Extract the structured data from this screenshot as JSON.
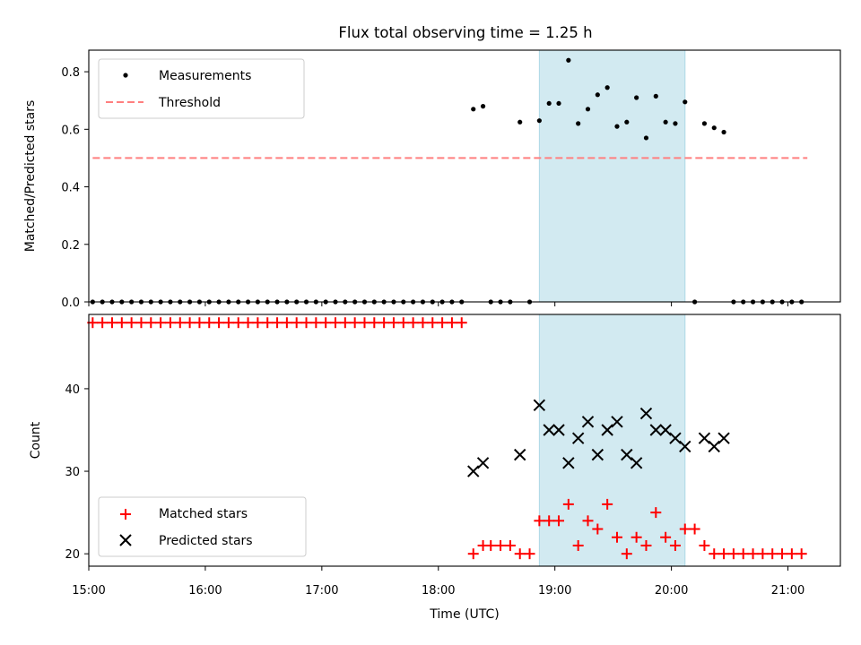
{
  "chart_data": [
    {
      "type": "scatter",
      "title": "Flux total observing time = 1.25 h",
      "ylabel": "Matched/Predicted stars",
      "xlabel": "",
      "xlim": [
        "15:00",
        "21:27"
      ],
      "ylim": [
        0,
        0.875
      ],
      "yticks": [
        0.0,
        0.2,
        0.4,
        0.6,
        0.8
      ],
      "yticklabels": [
        "0.0",
        "0.2",
        "0.4",
        "0.6",
        "0.8"
      ],
      "legend_position": "top-left",
      "shaded_span": {
        "from": "18:52",
        "to": "20:07",
        "color": "#add8e6"
      },
      "series": [
        {
          "name": "Measurements",
          "marker": "dot",
          "color": "#000000",
          "points": [
            [
              "15:02",
              0
            ],
            [
              "15:07",
              0
            ],
            [
              "15:12",
              0
            ],
            [
              "15:17",
              0
            ],
            [
              "15:22",
              0
            ],
            [
              "15:27",
              0
            ],
            [
              "15:32",
              0
            ],
            [
              "15:37",
              0
            ],
            [
              "15:42",
              0
            ],
            [
              "15:47",
              0
            ],
            [
              "15:52",
              0
            ],
            [
              "15:57",
              0
            ],
            [
              "16:02",
              0
            ],
            [
              "16:07",
              0
            ],
            [
              "16:12",
              0
            ],
            [
              "16:17",
              0
            ],
            [
              "16:22",
              0
            ],
            [
              "16:27",
              0
            ],
            [
              "16:32",
              0
            ],
            [
              "16:37",
              0
            ],
            [
              "16:42",
              0
            ],
            [
              "16:47",
              0
            ],
            [
              "16:52",
              0
            ],
            [
              "16:57",
              0
            ],
            [
              "17:02",
              0
            ],
            [
              "17:07",
              0
            ],
            [
              "17:12",
              0
            ],
            [
              "17:17",
              0
            ],
            [
              "17:22",
              0
            ],
            [
              "17:27",
              0
            ],
            [
              "17:32",
              0
            ],
            [
              "17:37",
              0
            ],
            [
              "17:42",
              0
            ],
            [
              "17:47",
              0
            ],
            [
              "17:52",
              0
            ],
            [
              "17:57",
              0
            ],
            [
              "18:02",
              0
            ],
            [
              "18:07",
              0
            ],
            [
              "18:12",
              0
            ],
            [
              "18:18",
              0.67
            ],
            [
              "18:23",
              0.68
            ],
            [
              "18:27",
              0
            ],
            [
              "18:32",
              0
            ],
            [
              "18:37",
              0
            ],
            [
              "18:42",
              0.625
            ],
            [
              "18:47",
              0
            ],
            [
              "18:52",
              0.63
            ],
            [
              "18:57",
              0.69
            ],
            [
              "19:02",
              0.69
            ],
            [
              "19:07",
              0.84
            ],
            [
              "19:12",
              0.62
            ],
            [
              "19:17",
              0.67
            ],
            [
              "19:22",
              0.72
            ],
            [
              "19:27",
              0.745
            ],
            [
              "19:32",
              0.61
            ],
            [
              "19:37",
              0.625
            ],
            [
              "19:42",
              0.71
            ],
            [
              "19:47",
              0.57
            ],
            [
              "19:52",
              0.715
            ],
            [
              "19:57",
              0.625
            ],
            [
              "20:02",
              0.62
            ],
            [
              "20:07",
              0.695
            ],
            [
              "20:12",
              0
            ],
            [
              "20:17",
              0.62
            ],
            [
              "20:22",
              0.605
            ],
            [
              "20:27",
              0.59
            ],
            [
              "20:32",
              0
            ],
            [
              "20:37",
              0
            ],
            [
              "20:42",
              0
            ],
            [
              "20:47",
              0
            ],
            [
              "20:52",
              0
            ],
            [
              "20:57",
              0
            ],
            [
              "21:02",
              0
            ],
            [
              "21:07",
              0
            ]
          ]
        },
        {
          "name": "Threshold",
          "style": "dashed",
          "color": "#ff7f7f",
          "points": [
            [
              "15:02",
              0.5
            ],
            [
              "21:10",
              0.5
            ]
          ]
        }
      ]
    },
    {
      "type": "scatter",
      "title": "",
      "xlabel": "Time (UTC)",
      "ylabel": "Count",
      "xlim": [
        "15:00",
        "21:27"
      ],
      "ylim": [
        18.5,
        49.0
      ],
      "xticklabels": [
        "15:00",
        "16:00",
        "17:00",
        "18:00",
        "19:00",
        "20:00",
        "21:00"
      ],
      "yticks": [
        20,
        30,
        40
      ],
      "yticklabels": [
        "20",
        "30",
        "40"
      ],
      "legend_position": "bottom-left",
      "shaded_span": {
        "from": "18:52",
        "to": "20:07",
        "color": "#add8e6"
      },
      "series": [
        {
          "name": "Matched stars",
          "marker": "plus",
          "color": "#ff0000",
          "points": [
            [
              "15:02",
              48
            ],
            [
              "15:07",
              48
            ],
            [
              "15:12",
              48
            ],
            [
              "15:17",
              48
            ],
            [
              "15:22",
              48
            ],
            [
              "15:27",
              48
            ],
            [
              "15:32",
              48
            ],
            [
              "15:37",
              48
            ],
            [
              "15:42",
              48
            ],
            [
              "15:47",
              48
            ],
            [
              "15:52",
              48
            ],
            [
              "15:57",
              48
            ],
            [
              "16:02",
              48
            ],
            [
              "16:07",
              48
            ],
            [
              "16:12",
              48
            ],
            [
              "16:17",
              48
            ],
            [
              "16:22",
              48
            ],
            [
              "16:27",
              48
            ],
            [
              "16:32",
              48
            ],
            [
              "16:37",
              48
            ],
            [
              "16:42",
              48
            ],
            [
              "16:47",
              48
            ],
            [
              "16:52",
              48
            ],
            [
              "16:57",
              48
            ],
            [
              "17:02",
              48
            ],
            [
              "17:07",
              48
            ],
            [
              "17:12",
              48
            ],
            [
              "17:17",
              48
            ],
            [
              "17:22",
              48
            ],
            [
              "17:27",
              48
            ],
            [
              "17:32",
              48
            ],
            [
              "17:37",
              48
            ],
            [
              "17:42",
              48
            ],
            [
              "17:47",
              48
            ],
            [
              "17:52",
              48
            ],
            [
              "17:57",
              48
            ],
            [
              "18:02",
              48
            ],
            [
              "18:07",
              48
            ],
            [
              "18:12",
              48
            ],
            [
              "18:18",
              20
            ],
            [
              "18:23",
              21
            ],
            [
              "18:27",
              21
            ],
            [
              "18:32",
              21
            ],
            [
              "18:37",
              21
            ],
            [
              "18:42",
              20
            ],
            [
              "18:47",
              20
            ],
            [
              "18:52",
              24
            ],
            [
              "18:57",
              24
            ],
            [
              "19:02",
              24
            ],
            [
              "19:07",
              26
            ],
            [
              "19:12",
              21
            ],
            [
              "19:17",
              24
            ],
            [
              "19:22",
              23
            ],
            [
              "19:27",
              26
            ],
            [
              "19:32",
              22
            ],
            [
              "19:37",
              20
            ],
            [
              "19:42",
              22
            ],
            [
              "19:47",
              21
            ],
            [
              "19:52",
              25
            ],
            [
              "19:57",
              22
            ],
            [
              "20:02",
              21
            ],
            [
              "20:07",
              23
            ],
            [
              "20:12",
              23
            ],
            [
              "20:17",
              21
            ],
            [
              "20:22",
              20
            ],
            [
              "20:27",
              20
            ],
            [
              "20:32",
              20
            ],
            [
              "20:37",
              20
            ],
            [
              "20:42",
              20
            ],
            [
              "20:47",
              20
            ],
            [
              "20:52",
              20
            ],
            [
              "20:57",
              20
            ],
            [
              "21:02",
              20
            ],
            [
              "21:07",
              20
            ]
          ]
        },
        {
          "name": "Predicted stars",
          "marker": "x",
          "color": "#000000",
          "points": [
            [
              "18:18",
              30
            ],
            [
              "18:23",
              31
            ],
            [
              "18:42",
              32
            ],
            [
              "18:52",
              38
            ],
            [
              "18:57",
              35
            ],
            [
              "19:02",
              35
            ],
            [
              "19:07",
              31
            ],
            [
              "19:12",
              34
            ],
            [
              "19:17",
              36
            ],
            [
              "19:22",
              32
            ],
            [
              "19:27",
              35
            ],
            [
              "19:32",
              36
            ],
            [
              "19:37",
              32
            ],
            [
              "19:42",
              31
            ],
            [
              "19:47",
              37
            ],
            [
              "19:52",
              35
            ],
            [
              "19:57",
              35
            ],
            [
              "20:02",
              34
            ],
            [
              "20:07",
              33
            ],
            [
              "20:17",
              34
            ],
            [
              "20:22",
              33
            ],
            [
              "20:27",
              34
            ]
          ]
        }
      ]
    }
  ]
}
